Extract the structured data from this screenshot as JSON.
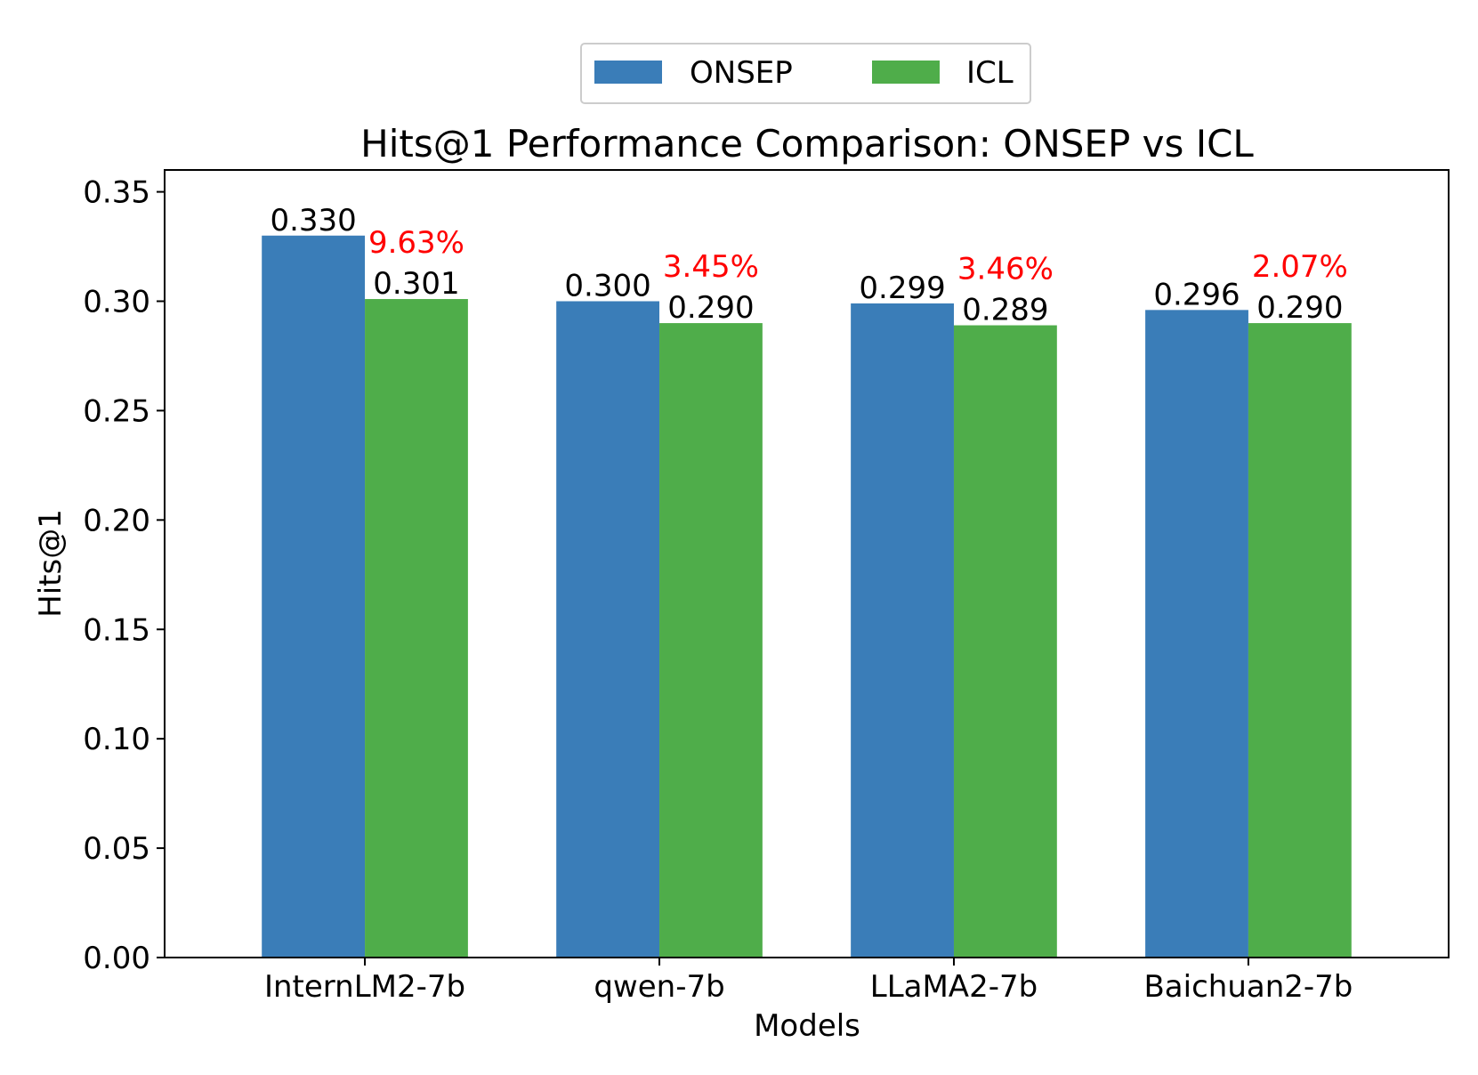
{
  "chart_data": {
    "type": "bar",
    "title": "Hits@1 Performance Comparison: ONSEP vs ICL",
    "xlabel": "Models",
    "ylabel": "Hits@1",
    "categories": [
      "InternLM2-7b",
      "qwen-7b",
      "LLaMA2-7b",
      "Baichuan2-7b"
    ],
    "series": [
      {
        "name": "ONSEP",
        "color": "#3a7db8",
        "values": [
          0.33,
          0.3,
          0.299,
          0.296
        ],
        "labels": [
          "0.330",
          "0.300",
          "0.299",
          "0.296"
        ]
      },
      {
        "name": "ICL",
        "color": "#4fad4a",
        "values": [
          0.301,
          0.29,
          0.289,
          0.29
        ],
        "labels": [
          "0.301",
          "0.290",
          "0.289",
          "0.290"
        ]
      }
    ],
    "improvements": [
      "9.63%",
      "3.45%",
      "3.46%",
      "2.07%"
    ],
    "improvement_color": "#ff0000",
    "ylim": [
      0,
      0.36
    ],
    "yticks": [
      "0.00",
      "0.05",
      "0.10",
      "0.15",
      "0.20",
      "0.25",
      "0.30",
      "0.35"
    ],
    "legend_position": "top-center",
    "grid": false
  }
}
